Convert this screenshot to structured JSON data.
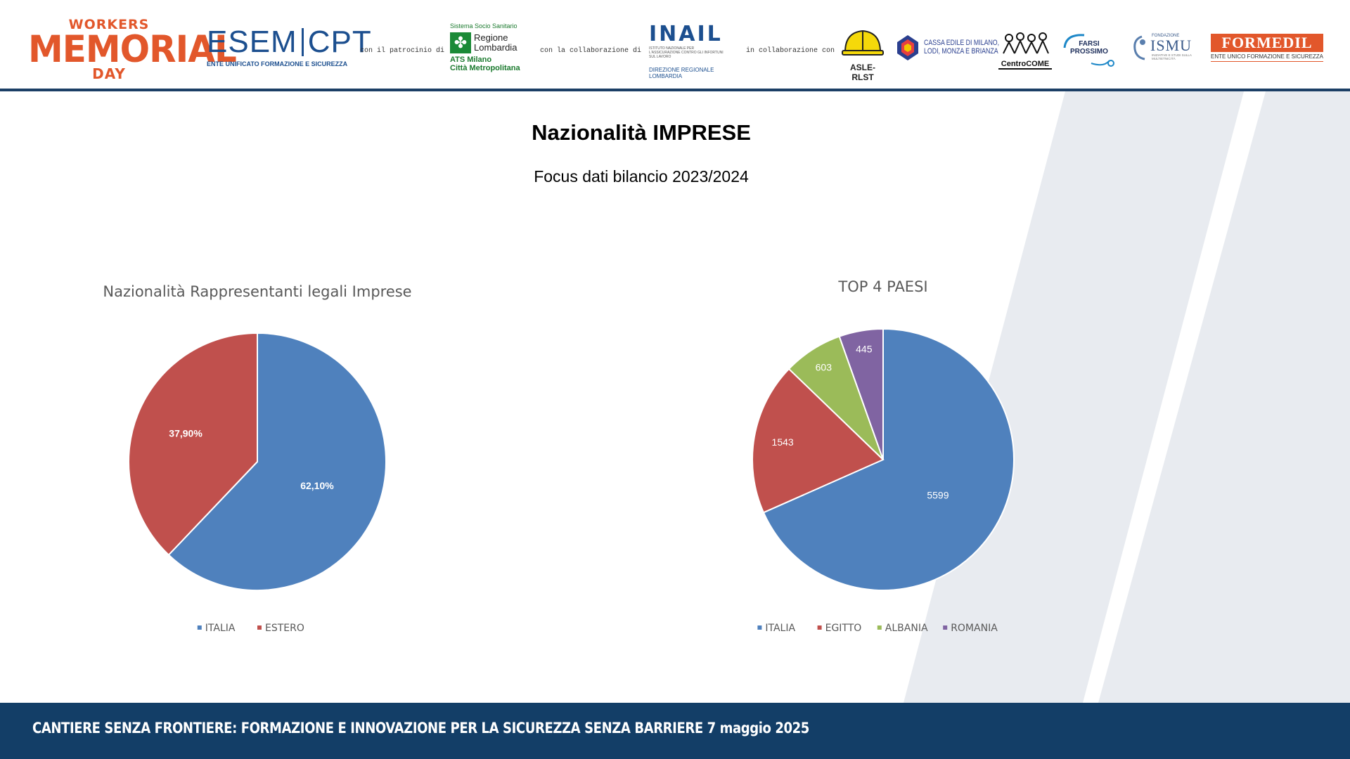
{
  "header": {
    "workers_memorial_day": {
      "line1": "WORKERS",
      "line2": "MEMORIAL",
      "line3": "DAY"
    },
    "esem_cpt": {
      "left": "ESEM",
      "right": "CPT",
      "subtitle": "ENTE UNIFICATO FORMAZIONE E SICUREZZA"
    },
    "con_il_patrocinio": "con il patrocinio di",
    "regione_lombardia": {
      "system": "Sistema Socio Sanitario",
      "name_line1": "Regione",
      "name_line2": "Lombardia",
      "ats_line1": "ATS Milano",
      "ats_line2": "Città Metropolitana"
    },
    "con_la_collaborazione": "con la collaborazione di",
    "inail": {
      "name": "INAIL",
      "fine": "ISTITUTO NAZIONALE PER L'ASSICURAZIONE CONTRO GLI INFORTUNI SUL LAVORO",
      "dir_line1": "DIREZIONE REGIONALE",
      "dir_line2": "LOMBARDIA"
    },
    "in_collaborazione": "in collaborazione con",
    "asle": "ASLE-RLST",
    "cassa_edile": {
      "line1": "CASSA EDILE DI MILANO,",
      "line2": "LODI, MONZA E BRIANZA"
    },
    "centrocome": "CentroCOME",
    "farsi_prossimo": {
      "line1": "FARSI",
      "line2": "PROSSIMO"
    },
    "ismu": {
      "fondazione": "FONDAZIONE",
      "name": "ISMU",
      "sub": "INIZIATIVE E STUDI SULLA MULTIETNICITÀ"
    },
    "formedil": {
      "name": "FORMEDIL",
      "sub": "ENTE UNICO FORMAZIONE E SICUREZZA"
    }
  },
  "slide": {
    "title": "Nazionalità IMPRESE",
    "subtitle": "Focus dati bilancio 2023/2024"
  },
  "colors": {
    "italia": "#4f81bd",
    "estero": "#c0504d",
    "egitto": "#c0504d",
    "albania": "#9bbb59",
    "romania": "#8064a2",
    "footer": "#133e67",
    "brand_orange": "#e2572b"
  },
  "chart_data": [
    {
      "type": "pie",
      "title": "Nazionalità Rappresentanti legali Imprese",
      "categories": [
        "ITALIA",
        "ESTERO"
      ],
      "values": [
        62.1,
        37.9
      ],
      "labels": [
        "62,10%",
        "37,90%"
      ],
      "legend_position": "bottom"
    },
    {
      "type": "pie",
      "title": "TOP 4 PAESI",
      "categories": [
        "ITALIA",
        "EGITTO",
        "ALBANIA",
        "ROMANIA"
      ],
      "values": [
        5599,
        1543,
        603,
        445
      ],
      "labels": [
        "5599",
        "1543",
        "603",
        "445"
      ],
      "legend_position": "bottom"
    }
  ],
  "footer": {
    "text": "CANTIERE SENZA FRONTIERE: FORMAZIONE E INNOVAZIONE  PER LA SICUREZZA SENZA BARRIERE 7 maggio 2025"
  }
}
